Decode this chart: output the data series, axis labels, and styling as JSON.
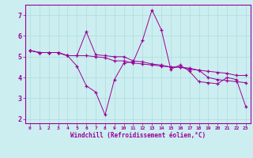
{
  "background_color": "#cceef0",
  "grid_color": "#aadddd",
  "line_color": "#990099",
  "marker": "+",
  "xlim": [
    -0.5,
    23.5
  ],
  "ylim": [
    1.8,
    7.5
  ],
  "xlabel": "Windchill (Refroidissement éolien,°C)",
  "xlabel_color": "#990099",
  "xticks": [
    0,
    1,
    2,
    3,
    4,
    5,
    6,
    7,
    8,
    9,
    10,
    11,
    12,
    13,
    14,
    15,
    16,
    17,
    18,
    19,
    20,
    21,
    22,
    23
  ],
  "yticks": [
    2,
    3,
    4,
    5,
    6,
    7
  ],
  "lines": [
    [
      5.3,
      5.2,
      5.2,
      5.2,
      5.05,
      4.55,
      3.6,
      3.3,
      2.2,
      3.9,
      4.7,
      4.75,
      5.8,
      7.25,
      6.3,
      4.4,
      4.6,
      4.3,
      3.8,
      3.75,
      3.7,
      4.0,
      3.9,
      2.6
    ],
    [
      5.3,
      5.2,
      5.2,
      5.2,
      5.05,
      5.05,
      5.05,
      5.0,
      4.95,
      4.8,
      4.8,
      4.7,
      4.65,
      4.6,
      4.55,
      4.5,
      4.5,
      4.4,
      4.35,
      4.3,
      4.25,
      4.2,
      4.1,
      4.1
    ],
    [
      5.3,
      5.2,
      5.2,
      5.2,
      5.05,
      5.05,
      6.2,
      5.1,
      5.05,
      5.0,
      5.0,
      4.8,
      4.75,
      4.65,
      4.6,
      4.5,
      4.5,
      4.45,
      4.35,
      4.0,
      3.9,
      3.85,
      3.8,
      3.75
    ]
  ],
  "fig_width": 3.2,
  "fig_height": 2.0,
  "dpi": 100
}
